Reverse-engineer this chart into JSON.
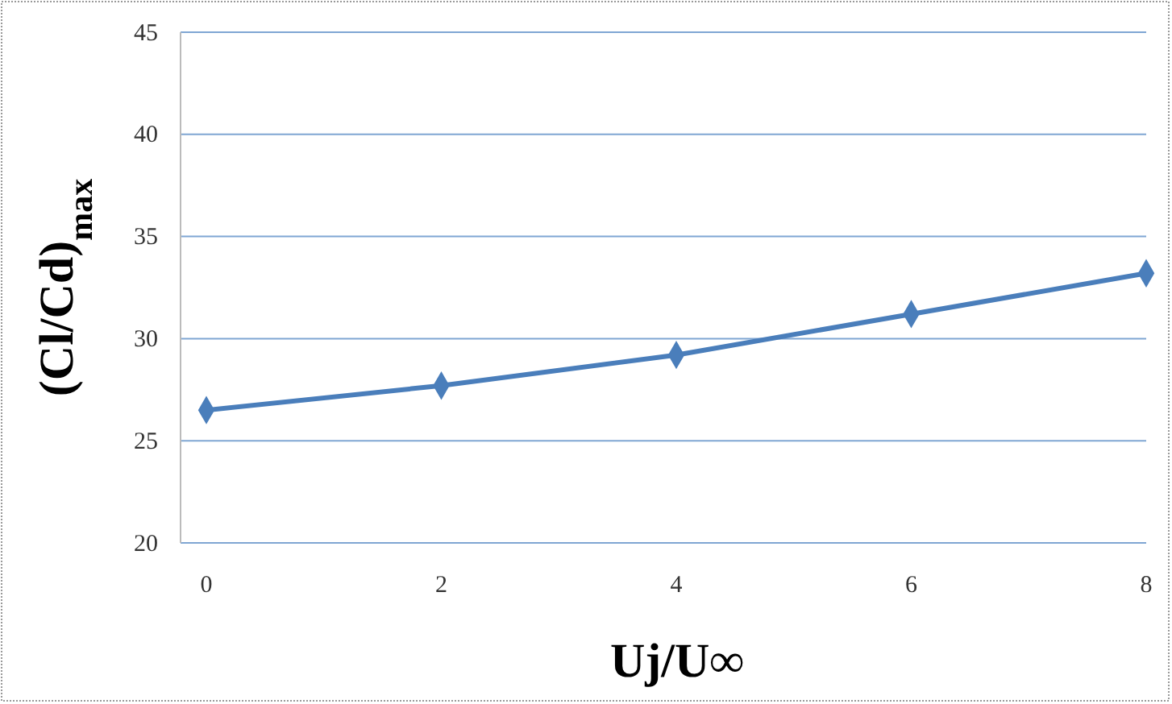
{
  "chart_data": {
    "type": "line",
    "xlabel": "Uj/U∞",
    "ylabel": "(Cl/Cd)$_{max}$",
    "categories": [
      "0",
      "2",
      "4",
      "6",
      "8"
    ],
    "series": [
      {
        "color": "#4a7ebb",
        "values": [
          26.5,
          27.7,
          29.2,
          31.2,
          33.2
        ]
      }
    ],
    "ylim": [
      20,
      45
    ],
    "yticks": [
      20,
      25,
      30,
      35,
      40,
      45
    ],
    "grid": "y",
    "marker": "diamond",
    "line_style": "solid"
  }
}
